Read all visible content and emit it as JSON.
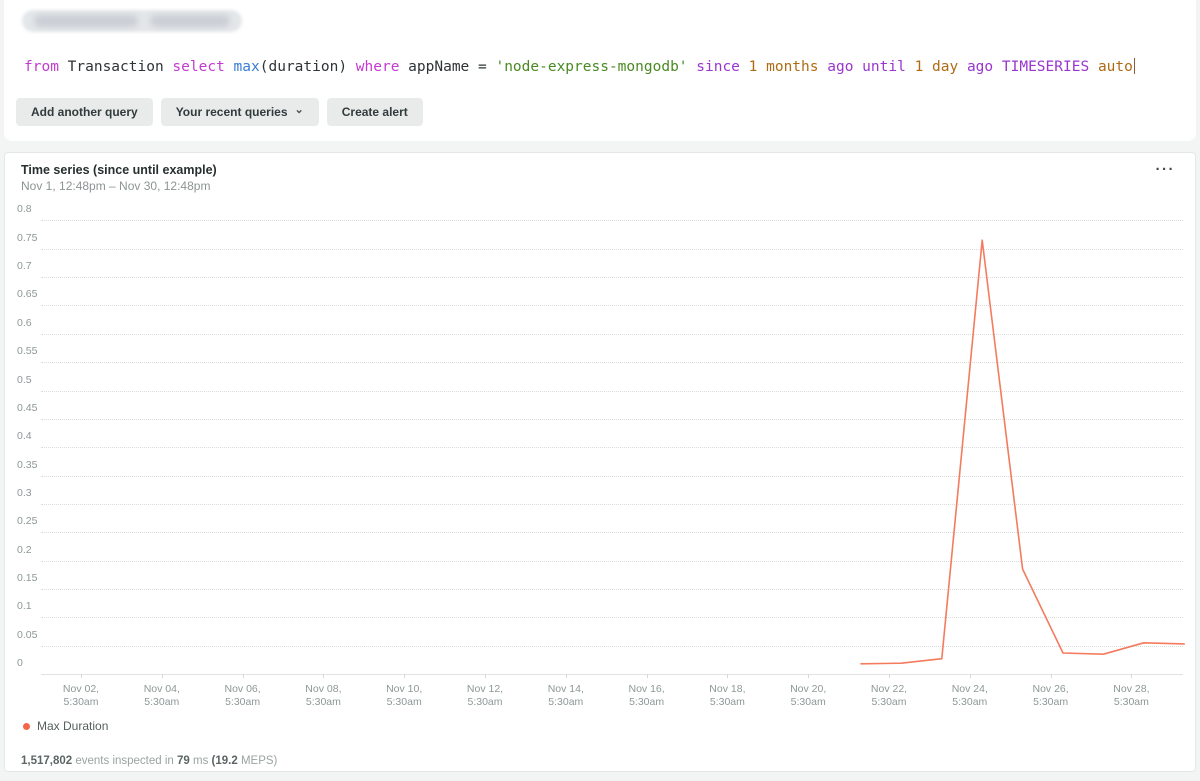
{
  "query_editor": {
    "token_colors": {
      "clause": "#c33bd0",
      "function": "#3a7dd3",
      "string": "#4a8a22",
      "keyword": "#9a36cf",
      "number": "#b06a14",
      "plain": "#2e3436"
    },
    "query_tokens": [
      {
        "text": "from",
        "type": "clause"
      },
      {
        "text": " Transaction ",
        "type": "plain"
      },
      {
        "text": "select",
        "type": "clause"
      },
      {
        "text": " ",
        "type": "plain"
      },
      {
        "text": "max",
        "type": "function"
      },
      {
        "text": "(duration) ",
        "type": "plain"
      },
      {
        "text": "where",
        "type": "clause"
      },
      {
        "text": " appName = ",
        "type": "plain"
      },
      {
        "text": "'node-express-mongodb'",
        "type": "string"
      },
      {
        "text": " ",
        "type": "plain"
      },
      {
        "text": "since",
        "type": "keyword"
      },
      {
        "text": " ",
        "type": "plain"
      },
      {
        "text": "1 months",
        "type": "number"
      },
      {
        "text": " ",
        "type": "plain"
      },
      {
        "text": "ago",
        "type": "keyword"
      },
      {
        "text": " ",
        "type": "plain"
      },
      {
        "text": "until",
        "type": "keyword"
      },
      {
        "text": " ",
        "type": "plain"
      },
      {
        "text": "1 day",
        "type": "number"
      },
      {
        "text": " ",
        "type": "plain"
      },
      {
        "text": "ago",
        "type": "keyword"
      },
      {
        "text": " ",
        "type": "plain"
      },
      {
        "text": "TIMESERIES",
        "type": "keyword"
      },
      {
        "text": " ",
        "type": "plain"
      },
      {
        "text": "auto",
        "type": "number"
      }
    ],
    "buttons": [
      {
        "label": "Add another query"
      },
      {
        "label": "Your recent queries",
        "has_chevron": true
      },
      {
        "label": "Create alert"
      }
    ]
  },
  "chart": {
    "menu_icon": "···"
  },
  "chart_data": {
    "type": "line",
    "title": "Time series (since until example)",
    "subtitle": "Nov 1, 12:48pm – Nov 30, 12:48pm",
    "xlabel": "",
    "ylabel": "",
    "ylim": [
      0,
      0.8
    ],
    "ytick_step": 0.05,
    "yticks": [
      "0",
      "0.05",
      "0.1",
      "0.15",
      "0.2",
      "0.25",
      "0.3",
      "0.35",
      "0.4",
      "0.45",
      "0.5",
      "0.55",
      "0.6",
      "0.65",
      "0.7",
      "0.75",
      "0.8"
    ],
    "xticks": [
      {
        "date": "Nov 02,",
        "time": "5:30am"
      },
      {
        "date": "Nov 04,",
        "time": "5:30am"
      },
      {
        "date": "Nov 06,",
        "time": "5:30am"
      },
      {
        "date": "Nov 08,",
        "time": "5:30am"
      },
      {
        "date": "Nov 10,",
        "time": "5:30am"
      },
      {
        "date": "Nov 12,",
        "time": "5:30am"
      },
      {
        "date": "Nov 14,",
        "time": "5:30am"
      },
      {
        "date": "Nov 16,",
        "time": "5:30am"
      },
      {
        "date": "Nov 18,",
        "time": "5:30am"
      },
      {
        "date": "Nov 20,",
        "time": "5:30am"
      },
      {
        "date": "Nov 22,",
        "time": "5:30am"
      },
      {
        "date": "Nov 24,",
        "time": "5:30am"
      },
      {
        "date": "Nov 26,",
        "time": "5:30am"
      },
      {
        "date": "Nov 28,",
        "time": "5:30am"
      }
    ],
    "grid": "horizontal-dotted",
    "legend_position": "bottom-left",
    "series": [
      {
        "name": "Max Duration",
        "line_color": "#f47b5d",
        "dot_color": "#f4664a",
        "points": [
          {
            "x": "Nov 21",
            "y": 0.018
          },
          {
            "x": "Nov 22",
            "y": 0.019
          },
          {
            "x": "Nov 23",
            "y": 0.027
          },
          {
            "x": "Nov 24",
            "y": 0.765
          },
          {
            "x": "Nov 25",
            "y": 0.185
          },
          {
            "x": "Nov 26",
            "y": 0.037
          },
          {
            "x": "Nov 27",
            "y": 0.035
          },
          {
            "x": "Nov 28",
            "y": 0.055
          },
          {
            "x": "Nov 29",
            "y": 0.053
          }
        ]
      }
    ]
  },
  "footer": {
    "segments": [
      {
        "text": "1,517,802",
        "bold": true
      },
      {
        "text": " events inspected in ",
        "bold": false
      },
      {
        "text": "79",
        "bold": true
      },
      {
        "text": " ms ",
        "bold": false
      },
      {
        "text": "(19.2",
        "bold": true
      },
      {
        "text": " MEPS)",
        "bold": false
      }
    ]
  }
}
